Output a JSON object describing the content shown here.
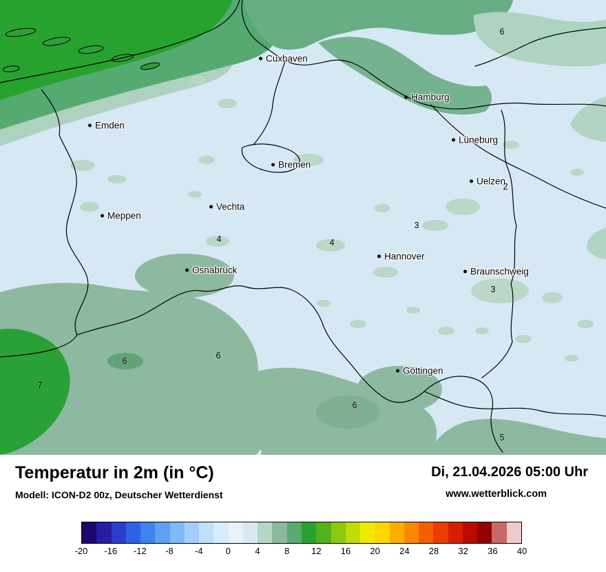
{
  "map": {
    "cities": [
      {
        "name": "Cuxhaven"
      },
      {
        "name": "Hamburg"
      },
      {
        "name": "Emden"
      },
      {
        "name": "Lüneburg"
      },
      {
        "name": "Bremen"
      },
      {
        "name": "Uelzen"
      },
      {
        "name": "Vechta"
      },
      {
        "name": "Meppen"
      },
      {
        "name": "Hannover"
      },
      {
        "name": "Osnabrück"
      },
      {
        "name": "Braunschweig"
      },
      {
        "name": "Göttingen"
      }
    ],
    "temperature_labels": [
      "6",
      "2",
      "3",
      "4",
      "4",
      "3",
      "6",
      "6",
      "7",
      "6",
      "5"
    ],
    "palette": {
      "background_2_4": "#d7e8f5",
      "teal_4_6": "#b2d4c3",
      "sage_6_8": "#8db9a0",
      "green_8_10": "#55aa71",
      "green_10_12": "#28a22e",
      "border_lines": "#000000"
    }
  },
  "footer": {
    "title": "Temperatur in 2m (in °C)",
    "model": "Modell: ICON-D2 00z, Deutscher Wetterdienst",
    "datetime": "Di, 21.04.2026 05:00 Uhr",
    "website": "www.wetterblick.com"
  },
  "colorbar": {
    "min": -20,
    "max": 40,
    "step": 2,
    "unit": "°C",
    "tick_values": [
      -20,
      -16,
      -12,
      -8,
      -4,
      0,
      4,
      8,
      12,
      16,
      20,
      24,
      28,
      32,
      36,
      40
    ],
    "tick_labels": [
      "-20",
      "-16",
      "-12",
      "-8",
      "-4",
      "0",
      "4",
      "8",
      "12",
      "16",
      "20",
      "24",
      "28",
      "32",
      "36",
      "40"
    ],
    "segment_colors": [
      "#1c0672",
      "#2a1ba4",
      "#2b3cce",
      "#2e61e6",
      "#3f83ef",
      "#5f9ff4",
      "#82b9f7",
      "#a4cefa",
      "#c0dffb",
      "#d6ebfd",
      "#e6f3fd",
      "#d7e8f5",
      "#b4d6c5",
      "#8cb89d",
      "#58aa70",
      "#2aa12e",
      "#51b31c",
      "#8cc90d",
      "#c2da05",
      "#f0ea00",
      "#fdd500",
      "#fdae00",
      "#fb8700",
      "#f65f00",
      "#ee3a00",
      "#da1d00",
      "#b80c00",
      "#930202",
      "#c96868",
      "#eecaca"
    ]
  }
}
